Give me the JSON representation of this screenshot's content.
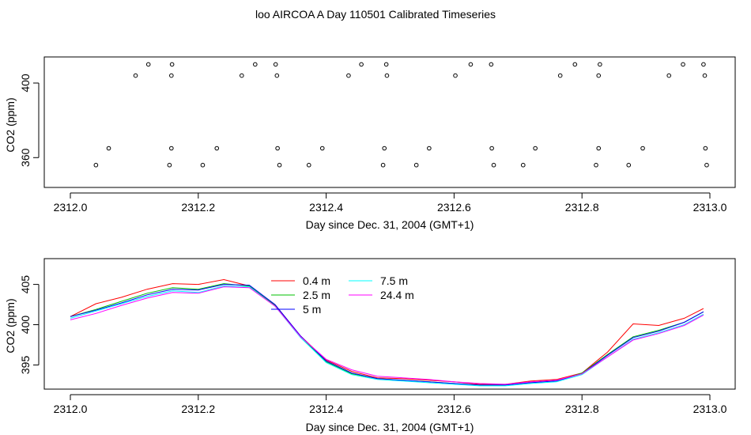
{
  "chart_data": [
    {
      "type": "scatter",
      "title": "loo AIRCOA A  Day 110501  Calibrated Timeseries",
      "xlabel": "Day since Dec. 31, 2004 (GMT+1)",
      "ylabel": "CO2 (ppm)",
      "xlim": [
        2312.0,
        2313.0
      ],
      "ylim": [
        344,
        414
      ],
      "x_ticks": [
        "2312.0",
        "2312.2",
        "2312.4",
        "2312.6",
        "2312.8",
        "2313.0"
      ],
      "y_ticks": [
        "360",
        "400"
      ],
      "series": [
        {
          "values": [
            {
              "x": 2312.122,
              "y": 410
            },
            {
              "x": 2312.159,
              "y": 410
            },
            {
              "x": 2312.289,
              "y": 410
            },
            {
              "x": 2312.321,
              "y": 410
            },
            {
              "x": 2312.455,
              "y": 410
            },
            {
              "x": 2312.494,
              "y": 410
            },
            {
              "x": 2312.626,
              "y": 410
            },
            {
              "x": 2312.658,
              "y": 410
            },
            {
              "x": 2312.789,
              "y": 410
            },
            {
              "x": 2312.828,
              "y": 410
            },
            {
              "x": 2312.958,
              "y": 410
            },
            {
              "x": 2312.99,
              "y": 410
            },
            {
              "x": 2312.102,
              "y": 404
            },
            {
              "x": 2312.158,
              "y": 404
            },
            {
              "x": 2312.268,
              "y": 404
            },
            {
              "x": 2312.323,
              "y": 404
            },
            {
              "x": 2312.435,
              "y": 404
            },
            {
              "x": 2312.495,
              "y": 404
            },
            {
              "x": 2312.602,
              "y": 404
            },
            {
              "x": 2312.766,
              "y": 404
            },
            {
              "x": 2312.826,
              "y": 404
            },
            {
              "x": 2312.936,
              "y": 404
            },
            {
              "x": 2312.992,
              "y": 404
            },
            {
              "x": 2312.06,
              "y": 365
            },
            {
              "x": 2312.158,
              "y": 365
            },
            {
              "x": 2312.229,
              "y": 365
            },
            {
              "x": 2312.324,
              "y": 365
            },
            {
              "x": 2312.394,
              "y": 365
            },
            {
              "x": 2312.491,
              "y": 365
            },
            {
              "x": 2312.561,
              "y": 365
            },
            {
              "x": 2312.659,
              "y": 365
            },
            {
              "x": 2312.727,
              "y": 365
            },
            {
              "x": 2312.826,
              "y": 365
            },
            {
              "x": 2312.895,
              "y": 365
            },
            {
              "x": 2312.993,
              "y": 365
            },
            {
              "x": 2312.04,
              "y": 356
            },
            {
              "x": 2312.155,
              "y": 356
            },
            {
              "x": 2312.207,
              "y": 356
            },
            {
              "x": 2312.327,
              "y": 356
            },
            {
              "x": 2312.373,
              "y": 356
            },
            {
              "x": 2312.489,
              "y": 356
            },
            {
              "x": 2312.541,
              "y": 356
            },
            {
              "x": 2312.662,
              "y": 356
            },
            {
              "x": 2312.708,
              "y": 356
            },
            {
              "x": 2312.822,
              "y": 356
            },
            {
              "x": 2312.873,
              "y": 356
            },
            {
              "x": 2312.995,
              "y": 356
            }
          ]
        }
      ]
    },
    {
      "type": "line",
      "xlabel": "Day since Dec. 31, 2004 (GMT+1)",
      "ylabel": "CO2 (ppm)",
      "xlim": [
        2312.0,
        2313.0
      ],
      "ylim": [
        392.0,
        408.2
      ],
      "x_ticks": [
        "2312.0",
        "2312.2",
        "2312.4",
        "2312.6",
        "2312.8",
        "2313.0"
      ],
      "y_ticks": [
        "395",
        "400",
        "405"
      ],
      "legend": "top-center",
      "x": [
        2312.0,
        2312.04,
        2312.08,
        2312.12,
        2312.16,
        2312.2,
        2312.24,
        2312.28,
        2312.32,
        2312.36,
        2312.4,
        2312.44,
        2312.48,
        2312.52,
        2312.56,
        2312.6,
        2312.64,
        2312.68,
        2312.72,
        2312.76,
        2312.8,
        2312.84,
        2312.88,
        2312.92,
        2312.96,
        2312.99
      ],
      "series": [
        {
          "name": "0.4 m",
          "color": "#ff0000",
          "values": [
            401.0,
            402.6,
            403.4,
            404.4,
            405.1,
            405.0,
            405.6,
            404.8,
            402.5,
            398.6,
            395.6,
            394.2,
            393.4,
            393.3,
            393.1,
            392.9,
            392.6,
            392.6,
            393.0,
            393.2,
            394.0,
            396.6,
            400.1,
            399.9,
            400.8,
            402.0
          ]
        },
        {
          "name": "2.5 m",
          "color": "#00c000",
          "values": [
            401.0,
            401.9,
            402.9,
            403.9,
            404.6,
            404.4,
            405.1,
            404.8,
            402.4,
            398.5,
            395.4,
            393.9,
            393.3,
            393.1,
            392.9,
            392.7,
            392.5,
            392.5,
            392.8,
            393.0,
            394.0,
            396.3,
            398.5,
            399.3,
            400.3,
            401.6
          ]
        },
        {
          "name": "5 m",
          "color": "#0000ff",
          "values": [
            401.0,
            401.8,
            402.7,
            403.7,
            404.4,
            404.3,
            405.0,
            404.9,
            402.5,
            398.6,
            395.5,
            394.0,
            393.3,
            393.1,
            392.9,
            392.7,
            392.5,
            392.5,
            392.8,
            393.0,
            393.9,
            396.2,
            398.4,
            399.2,
            400.3,
            401.6
          ]
        },
        {
          "name": "7.5 m",
          "color": "#00ffff",
          "values": [
            400.8,
            401.7,
            402.6,
            403.5,
            404.2,
            404.0,
            404.8,
            404.7,
            402.3,
            398.4,
            395.3,
            393.8,
            393.2,
            393.0,
            392.8,
            392.6,
            392.4,
            392.4,
            392.7,
            392.9,
            393.8,
            396.0,
            398.2,
            399.0,
            400.0,
            401.3
          ]
        },
        {
          "name": "24.4 m",
          "color": "#ff00ff",
          "values": [
            400.6,
            401.4,
            402.4,
            403.3,
            404.0,
            403.9,
            404.7,
            404.6,
            402.3,
            398.5,
            395.7,
            394.4,
            393.6,
            393.4,
            393.2,
            392.9,
            392.7,
            392.6,
            392.9,
            393.1,
            393.9,
            396.0,
            398.1,
            398.9,
            399.9,
            401.2
          ]
        }
      ]
    }
  ]
}
